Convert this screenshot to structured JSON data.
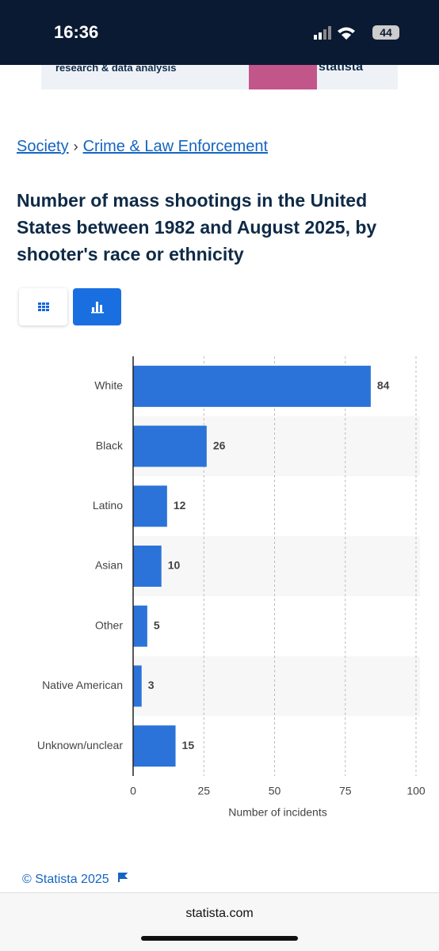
{
  "status_bar": {
    "time": "16:36",
    "battery": "44"
  },
  "banner": {
    "text": "research & data analysis",
    "brand": "statista"
  },
  "breadcrumb": {
    "items": [
      "Society",
      "Crime & Law Enforcement"
    ],
    "separator": "›"
  },
  "footer": {
    "copyright": "© Statista 2025",
    "url": "statista.com"
  },
  "chart_data": {
    "type": "bar",
    "orientation": "horizontal",
    "title": "Number of mass shootings in the United States between 1982 and August 2025, by shooter's race or ethnicity",
    "categories": [
      "White",
      "Black",
      "Latino",
      "Asian",
      "Other",
      "Native American",
      "Unknown/unclear"
    ],
    "values": [
      84,
      26,
      12,
      10,
      5,
      3,
      15
    ],
    "color": "#2b73d9",
    "xlim": [
      0,
      100
    ],
    "xticks": [
      0,
      25,
      50,
      75,
      100
    ],
    "xlabel": "Number of incidents",
    "grid": true
  }
}
